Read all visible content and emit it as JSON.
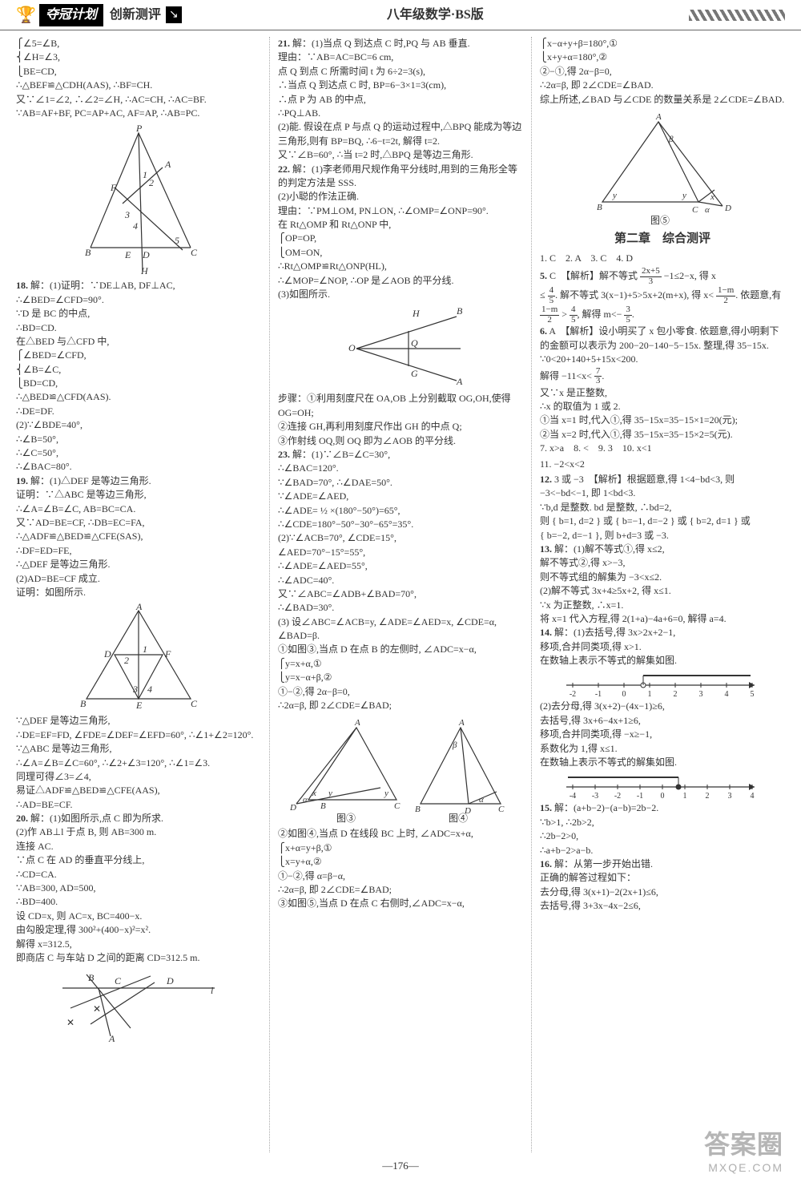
{
  "header": {
    "plan_label": "夺冠计划",
    "sub_label": "创新测评",
    "book_label": "八年级数学·BS版"
  },
  "colors": {
    "text": "#333333",
    "logo_bg": "#000000",
    "logo_fg": "#ffffff",
    "dotted": "#aaaaaa",
    "background": "#ffffff"
  },
  "page_number": "—176—",
  "watermark": {
    "main": "答案圈",
    "url": "MXQE.COM"
  },
  "col1": {
    "l1": "⎧∠5=∠B,",
    "l2": "⎨∠H=∠3,",
    "l3": "⎩BE=CD,",
    "l4": "∴△BEF≌△CDH(AAS), ∴BF=CH.",
    "l5": "又∵∠1=∠2, ∴∠2=∠H, ∴AC=CH, ∴AC=BF.",
    "l6": "∵AB=AF+BF, PC=AP+AC, AF=AP, ∴AB=PC.",
    "fig1_labels": [
      "P",
      "A",
      "F",
      "1",
      "2",
      "3",
      "4",
      "5",
      "B",
      "E",
      "D",
      "C",
      "H"
    ],
    "p18_num": "18.",
    "p18a": "解：(1)证明：∵DE⊥AB, DF⊥AC,",
    "p18b": "∴∠BED=∠CFD=90°.",
    "p18c": "∵D 是 BC 的中点,",
    "p18d": "∴BD=CD.",
    "p18e": "在△BED 与△CFD 中,",
    "p18f": "⎧∠BED=∠CFD,",
    "p18g": "⎨∠B=∠C,",
    "p18h": "⎩BD=CD,",
    "p18i": "∴△BED≌△CFD(AAS).",
    "p18j": "∴DE=DF.",
    "p18k": "(2)∵∠BDE=40°,",
    "p18l": "∴∠B=50°,",
    "p18m": "∴∠C=50°,",
    "p18n": "∴∠BAC=80°.",
    "p19_num": "19.",
    "p19a": "解：(1)△DEF 是等边三角形.",
    "p19b": "证明：∵△ABC 是等边三角形,",
    "p19c": "∴∠A=∠B=∠C, AB=BC=CA.",
    "p19d": "又∵AD=BE=CF, ∴DB=EC=FA,",
    "p19e": "∴△ADF≌△BED≌△CFE(SAS),",
    "p19f": "∴DF=ED=FE,",
    "p19g": "∴△DEF 是等边三角形.",
    "p19h": "(2)AD=BE=CF 成立.",
    "p19i": "证明：如图所示.",
    "fig2_labels": [
      "A",
      "F",
      "D",
      "1",
      "2",
      "3",
      "4",
      "B",
      "E",
      "C"
    ],
    "p19j": "∵△DEF 是等边三角形,",
    "p19k": "∴DE=EF=FD, ∠FDE=∠DEF=∠EFD=60°, ∴∠1+∠2=120°.",
    "p19l": "∵△ABC 是等边三角形,",
    "p19m": "∴∠A=∠B=∠C=60°, ∴∠2+∠3=120°, ∴∠1=∠3.",
    "p19n": "同理可得∠3=∠4,",
    "p19o": "易证△ADF≌△BED≌△CFE(AAS),",
    "p19p": "∴AD=BE=CF.",
    "p20_num": "20.",
    "p20a": "解：(1)如图所示,点 C 即为所求.",
    "p20b": "(2)作 AB⊥l 于点 B, 则 AB=300 m.",
    "p20c": "连接 AC.",
    "p20d": "∵点 C 在 AD 的垂直平分线上,",
    "p20e": "∴CD=CA.",
    "p20f": "∵AB=300, AD=500,",
    "p20g": "∴BD=400.",
    "p20h": "设 CD=x, 则 AC=x, BC=400−x.",
    "p20i": "由勾股定理,得 300²+(400−x)²=x².",
    "p20j": "解得 x=312.5,",
    "p20k": "即商店 C 与车站 D 之间的距离 CD=312.5 m.",
    "fig3_labels": [
      "B",
      "C",
      "D",
      "l",
      "A"
    ]
  },
  "col2": {
    "p21_num": "21.",
    "p21a": "解：(1)当点 Q 到达点 C 时,PQ 与 AB 垂直.",
    "p21b": "理由：∵AB=AC=BC=6 cm,",
    "p21c": "点 Q 到点 C 所需时间 t 为 6÷2=3(s),",
    "p21d": "∴当点 Q 到达点 C 时, BP=6−3×1=3(cm),",
    "p21e": "∴点 P 为 AB 的中点,",
    "p21f": "∴PQ⊥AB.",
    "p21g": "(2)能. 假设在点 P 与点 Q 的运动过程中,△BPQ 能成为等边三角形,则有 BP=BQ, ∴6−t=2t, 解得 t=2.",
    "p21h": "又∵∠B=60°, ∴当 t=2 时,△BPQ 是等边三角形.",
    "p22_num": "22.",
    "p22a": "解：(1)李老师用尺规作角平分线时,用到的三角形全等的判定方法是 SSS.",
    "p22b": "(2)小聪的作法正确.",
    "p22c": "理由：∵PM⊥OM, PN⊥ON, ∴∠OMP=∠ONP=90°.",
    "p22d": "在 Rt△OMP 和 Rt△ONP 中,",
    "p22e": "⎧OP=OP,",
    "p22f": "⎩OM=ON,",
    "p22g": "∴Rt△OMP≌Rt△ONP(HL),",
    "p22h": "∴∠MOP=∠NOP, ∴OP 是∠AOB 的平分线.",
    "p22i": "(3)如图所示.",
    "fig4_labels": [
      "H",
      "B",
      "O",
      "Q",
      "G",
      "A"
    ],
    "p22j": "步骤：①利用刻度尺在 OA,OB 上分别截取 OG,OH,使得 OG=OH;",
    "p22k": "②连接 GH,再利用刻度尺作出 GH 的中点 Q;",
    "p22l": "③作射线 OQ,则 OQ 即为∠AOB 的平分线.",
    "p23_num": "23.",
    "p23a": "解：(1)∵∠B=∠C=30°,",
    "p23b": "∴∠BAC=120°.",
    "p23c": "∵∠BAD=70°, ∴∠DAE=50°.",
    "p23d": "∵∠ADE=∠AED,",
    "p23e": "∴∠ADE= ½ ×(180°−50°)=65°,",
    "p23f": "∴∠CDE=180°−50°−30°−65°=35°.",
    "p23g": "(2)∵∠ACB=70°, ∠CDE=15°,",
    "p23h": "∠AED=70°−15°=55°,",
    "p23i": "∴∠ADE=∠AED=55°,",
    "p23j": "∴∠ADC=40°.",
    "p23k": "又∵∠ABC=∠ADB+∠BAD=70°,",
    "p23l": "∴∠BAD=30°.",
    "p23m": "(3) 设∠ABC=∠ACB=y, ∠ADE=∠AED=x, ∠CDE=α, ∠BAD=β.",
    "p23n": "①如图③,当点 D 在点 B 的左侧时, ∠ADC=x−α,",
    "p23o": "⎧y=x+α,①",
    "p23p": "⎩y=x−α+β,②",
    "p23q": "①−②,得 2α−β=0,",
    "p23r": "∴2α=β, 即 2∠CDE=∠BAD;",
    "fig5_labels": [
      "A",
      "A",
      "β",
      "x",
      "y",
      "y",
      "D",
      "α",
      "B",
      "C",
      "B",
      "D",
      "C",
      "α",
      "图③",
      "图④"
    ],
    "p23s": "②如图④,当点 D 在线段 BC 上时, ∠ADC=x+α,",
    "p23t": "⎧x+α=y+β,①",
    "p23u": "⎩x=y+α,②",
    "p23v": "①−②,得 α=β−α,",
    "p23w": "∴2α=β, 即 2∠CDE=∠BAD;",
    "p23x": "③如图⑤,当点 D 在点 C 右侧时,∠ADC=x−α,"
  },
  "col3": {
    "l1": "⎧x−α+y+β=180°,①",
    "l2": "⎩x+y+α=180°,②",
    "l3": "②−①,得 2α−β=0,",
    "l4": "∴2α=β, 即 2∠CDE=∠BAD.",
    "l5": "综上所述,∠BAD 与∠CDE 的数量关系是 2∠CDE=∠BAD.",
    "fig6_labels": [
      "A",
      "β",
      "y",
      "y",
      "x",
      "B",
      "C",
      "D",
      "α",
      "图⑤"
    ],
    "chapter": "第二章　综合测评",
    "a1": "1. C　2. A　3. C　4. D",
    "a5num": "5.",
    "a5": "C　【解析】解不等式 ",
    "a5frac_n": "2x+5",
    "a5frac_d": "3",
    "a5b": " −1≤2−x, 得 x",
    "a5c": "≤ ",
    "a5c_n": "4",
    "a5c_d": "5",
    "a5d": ". 解不等式 3(x−1)+5>5x+2(m+x), 得 x< ",
    "a5d_n": "1−m",
    "a5d_d": "2",
    "a5e": ". 依题意,有 ",
    "a5e_n": "1−m",
    "a5e_d": "2",
    "a5f": " > ",
    "a5f_n": "4",
    "a5f_d": "5",
    "a5g": ", 解得 m<− ",
    "a5g_n": "3",
    "a5g_d": "5",
    "a5h": ".",
    "a6num": "6.",
    "a6a": "A　【解析】设小明买了 x 包小零食. 依题意,得小明剩下的金额可以表示为 200−20−140−5−15x. 整理,得 35−15x.",
    "a6b": "∵0<20+140+5+15x<200.",
    "a6c": "解得 −11<x< ",
    "a6c_n": "7",
    "a6c_d": "3",
    "a6d": ".",
    "a6e": "又∵x 是正整数,",
    "a6f": "∴x 的取值为 1 或 2.",
    "a6g": "①当 x=1 时,代入①,得 35−15x=35−15×1=20(元);",
    "a6h": "②当 x=2 时,代入①,得 35−15x=35−15×2=5(元).",
    "a7": "7. x>a　8. <　9. 3　10. x<1",
    "a11": "11. −2<x<2",
    "a12num": "12.",
    "a12a": "3 或 −3　【解析】根据题意,得 1<4−bd<3, 则 −3<−bd<−1, 即 1<bd<3.",
    "a12b": "∵b,d 是整数. bd 是整数, ∴bd=2,",
    "a12c": "则 { b=1, d=2 } 或 { b=−1, d=−2 } 或 { b=2, d=1 } 或",
    "a12d": "{ b=−2, d=−1 }, 则 b+d=3 或 −3.",
    "a13num": "13.",
    "a13a": "解：(1)解不等式①,得 x≤2,",
    "a13b": "解不等式②,得 x>−3,",
    "a13c": "则不等式组的解集为 −3<x≤2.",
    "a13d": "(2)解不等式 3x+4≥5x+2, 得 x≤1.",
    "a13e": "∵x 为正整数, ∴x=1.",
    "a13f": "将 x=1 代入方程,得 2(1+a)−4a+6=0, 解得 a=4.",
    "a14num": "14.",
    "a14a": "解：(1)去括号,得 3x>2x+2−1,",
    "a14b": "移项,合并同类项,得 x>1.",
    "a14c": "在数轴上表示不等式的解集如图.",
    "numline1": {
      "ticks": [
        -2,
        -1,
        0,
        1,
        2,
        3,
        4,
        5
      ],
      "open": 1,
      "dir": "right"
    },
    "a14d": "(2)去分母,得 3(x+2)−(4x−1)≥6,",
    "a14e": "去括号,得 3x+6−4x+1≥6,",
    "a14f": "移项,合并同类项,得 −x≥−1,",
    "a14g": "系数化为 1,得 x≤1.",
    "a14h": "在数轴上表示不等式的解集如图.",
    "numline2": {
      "ticks": [
        -4,
        -3,
        -2,
        -1,
        0,
        1,
        2,
        3,
        4
      ],
      "closed": 1,
      "dir": "left"
    },
    "a15num": "15.",
    "a15a": "解：(a+b−2)−(a−b)=2b−2.",
    "a15b": "∵b>1, ∴2b>2,",
    "a15c": "∴2b−2>0,",
    "a15d": "∴a+b−2>a−b.",
    "a16num": "16.",
    "a16a": "解：从第一步开始出错.",
    "a16b": "正确的解答过程如下：",
    "a16c": "去分母,得 3(x+1)−2(2x+1)≤6,",
    "a16d": "去括号,得 3+3x−4x−2≤6,"
  }
}
